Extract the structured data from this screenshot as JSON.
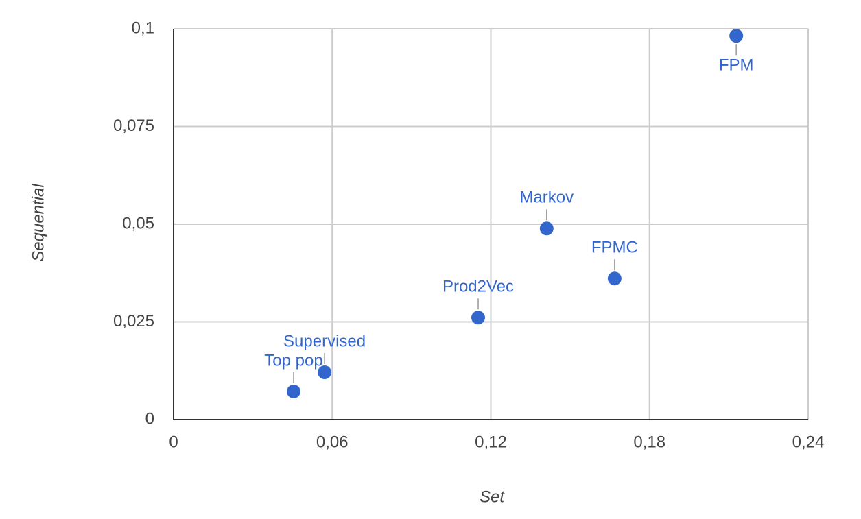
{
  "chart_data": {
    "type": "scatter",
    "x_label": "Set",
    "y_label": "Sequential",
    "labels": [
      "FPM",
      "Markov",
      "FPMC",
      "Prod2Vec",
      "Supervised",
      "Top pop"
    ],
    "x": [
      0.2128,
      0.1411,
      0.1668,
      0.1152,
      0.0571,
      0.0454
    ],
    "values": [
      0.0982,
      0.0489,
      0.0361,
      0.0261,
      0.0121,
      0.0072
    ],
    "color": "#3366cc",
    "xlim": [
      0,
      0.24
    ],
    "xticks": [
      0,
      {
        "value": 0.06,
        "label": "0,06"
      },
      {
        "value": 0.12,
        "label": "0,12"
      },
      {
        "value": 0.18,
        "label": "0,18"
      },
      {
        "value": 0.24,
        "label": "0,24"
      }
    ],
    "ylim": [
      0,
      0.1
    ],
    "yticks": [
      0,
      {
        "value": 0.025,
        "label": "0,025"
      },
      {
        "value": 0.05,
        "label": "0,05"
      },
      {
        "value": 0.075,
        "label": "0,075"
      },
      {
        "value": 0.1,
        "label": "0,1"
      }
    ],
    "grid": true
  }
}
